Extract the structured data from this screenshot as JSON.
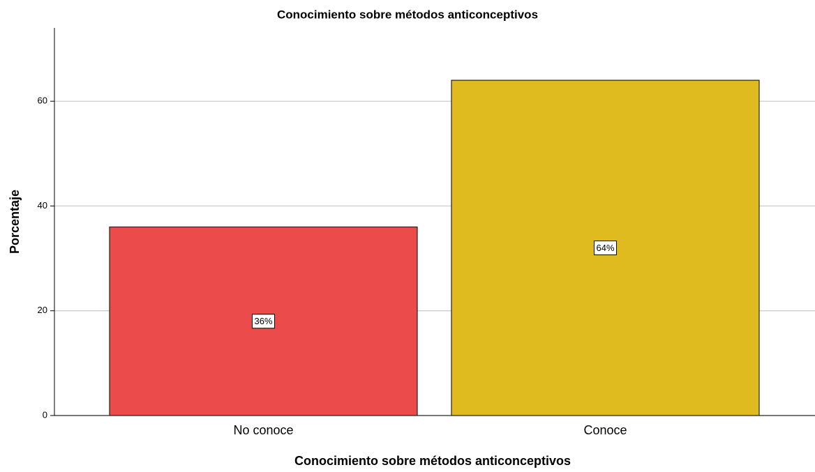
{
  "chart_data": {
    "type": "bar",
    "title": "Conocimiento sobre métodos anticonceptivos",
    "x_label": "Conocimiento sobre métodos anticonceptivos",
    "y_label": "Porcentaje",
    "categories": [
      "No conoce",
      "Conoce"
    ],
    "values": [
      36,
      64
    ],
    "value_labels": [
      "36%",
      "64%"
    ],
    "colors": [
      "#ec4b4b",
      "#e0bb20"
    ],
    "ylim": [
      0,
      74
    ],
    "yticks": [
      0,
      20,
      40,
      60
    ],
    "grid": true
  }
}
